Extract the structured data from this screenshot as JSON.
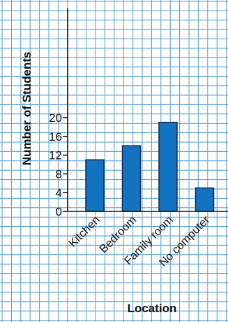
{
  "chart_data": {
    "type": "bar",
    "categories": [
      "Kitchen",
      "Bedroom",
      "Family room",
      "No computer"
    ],
    "values": [
      11,
      14,
      19,
      5
    ],
    "xlabel": "Location",
    "ylabel": "Number of Students",
    "ylim": [
      0,
      22
    ],
    "yticks": [
      0,
      4,
      8,
      12,
      16,
      20
    ],
    "grid": true,
    "colors": {
      "bar": "#1473c0",
      "bar_edge": "#0d2a4a",
      "grid": "#4f9bd9",
      "axis": "#111111"
    }
  }
}
